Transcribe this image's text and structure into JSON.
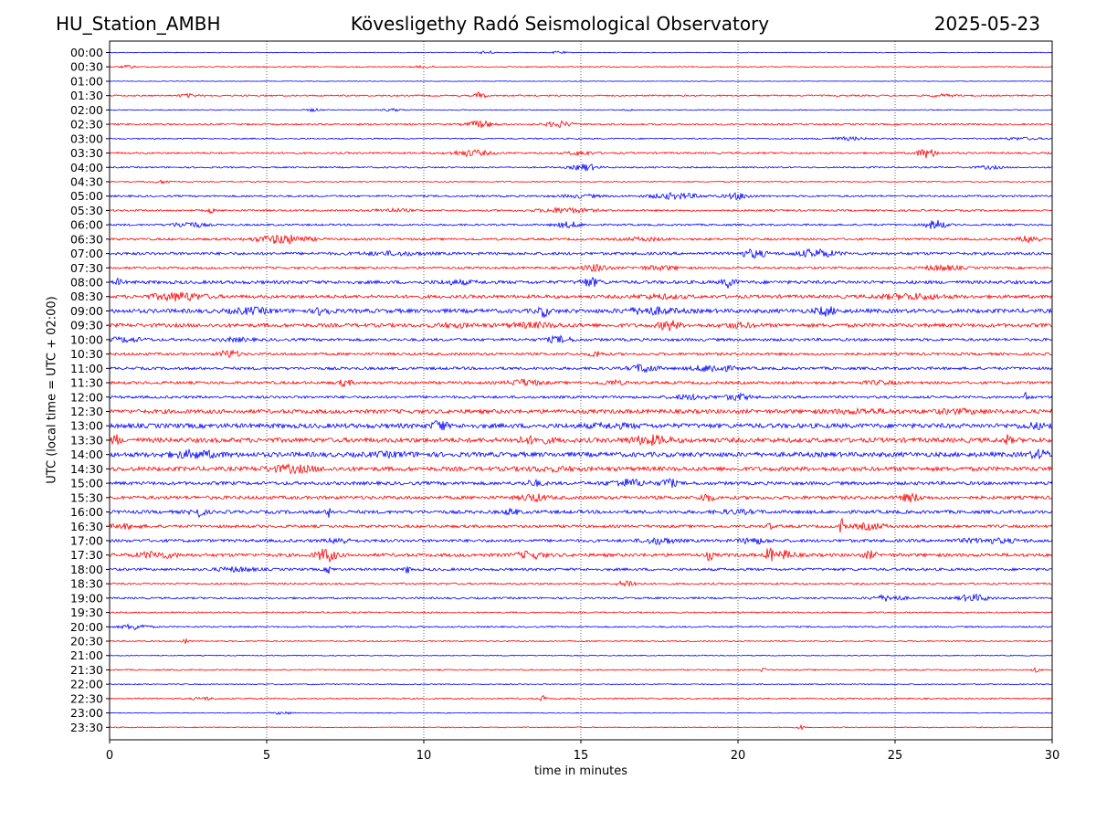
{
  "header": {
    "station": "HU_Station_AMBH",
    "observatory": "Kövesligethy Radó Seismological Observatory",
    "date": "2025-05-23"
  },
  "chart_data": {
    "type": "line",
    "title": "Kövesligethy Radó Seismological Observatory",
    "xlabel": "time in minutes",
    "ylabel": "UTC (local time = UTC + 02:00)",
    "xlim": [
      0,
      30
    ],
    "x_ticks": [
      "0",
      "5",
      "10",
      "15",
      "20",
      "25",
      "30"
    ],
    "x_grid": "dotted vertical lines at 5, 10, 15, 20, 25",
    "trace_colors": [
      "#0000ff",
      "#ff0000"
    ],
    "color_pattern": "alternating, blue on the hour, red on the half hour",
    "rows": [
      "00:00",
      "00:30",
      "01:00",
      "01:30",
      "02:00",
      "02:30",
      "03:00",
      "03:30",
      "04:00",
      "04:30",
      "05:00",
      "05:30",
      "06:00",
      "06:30",
      "07:00",
      "07:30",
      "08:00",
      "08:30",
      "09:00",
      "09:30",
      "10:00",
      "10:30",
      "11:00",
      "11:30",
      "12:00",
      "12:30",
      "13:00",
      "13:30",
      "14:00",
      "14:30",
      "15:00",
      "15:30",
      "16:00",
      "16:30",
      "17:00",
      "17:30",
      "18:00",
      "18:30",
      "19:00",
      "19:30",
      "20:00",
      "20:30",
      "21:00",
      "21:30",
      "22:00",
      "22:30",
      "23:00",
      "23:30"
    ],
    "series": [
      {
        "base": 0.4,
        "bursts": [
          [
            12,
            0.2,
            2
          ],
          [
            14.3,
            0.2,
            1.5
          ]
        ]
      },
      {
        "base": 0.6,
        "bursts": [
          [
            0.6,
            0.2,
            1.5
          ],
          [
            10,
            0.3,
            1
          ]
        ]
      },
      {
        "base": 0.3,
        "bursts": []
      },
      {
        "base": 0.8,
        "bursts": [
          [
            11.8,
            0.15,
            4
          ],
          [
            2.5,
            0.3,
            1.5
          ],
          [
            26.5,
            0.4,
            1.2
          ]
        ]
      },
      {
        "base": 0.5,
        "bursts": [
          [
            6.5,
            0.2,
            1.5
          ],
          [
            9,
            0.3,
            1.2
          ],
          [
            16.5,
            0.1,
            2
          ]
        ]
      },
      {
        "base": 0.9,
        "bursts": [
          [
            11.8,
            0.4,
            3.5
          ],
          [
            14.3,
            0.4,
            3
          ]
        ]
      },
      {
        "base": 0.7,
        "bursts": [
          [
            23.5,
            0.6,
            1.5
          ],
          [
            29,
            0.6,
            1.2
          ]
        ]
      },
      {
        "base": 1.0,
        "bursts": [
          [
            11.5,
            0.6,
            3
          ],
          [
            15,
            0.4,
            2
          ],
          [
            26,
            0.3,
            5
          ]
        ]
      },
      {
        "base": 0.8,
        "bursts": [
          [
            15,
            0.4,
            1.5
          ],
          [
            28,
            0.4,
            1.5
          ],
          [
            15.2,
            0.3,
            2.5
          ]
        ]
      },
      {
        "base": 0.6,
        "bursts": [
          [
            1.7,
            0.3,
            1.5
          ]
        ]
      },
      {
        "base": 1.0,
        "bursts": [
          [
            18,
            0.8,
            3
          ],
          [
            20,
            0.4,
            3
          ],
          [
            15,
            0.6,
            1.5
          ]
        ]
      },
      {
        "base": 1.0,
        "bursts": [
          [
            3.2,
            0.1,
            3
          ],
          [
            14.5,
            0.8,
            2.5
          ],
          [
            9,
            0.6,
            1.5
          ]
        ]
      },
      {
        "base": 1.0,
        "bursts": [
          [
            2.5,
            0.5,
            3
          ],
          [
            14.6,
            0.4,
            3
          ],
          [
            26.3,
            0.3,
            5
          ]
        ]
      },
      {
        "base": 1.2,
        "bursts": [
          [
            5.5,
            0.8,
            4.5
          ],
          [
            29.3,
            0.3,
            4
          ],
          [
            17,
            0.6,
            1.5
          ]
        ]
      },
      {
        "base": 1.5,
        "bursts": [
          [
            20.5,
            0.4,
            4
          ],
          [
            22.5,
            0.6,
            4
          ],
          [
            9,
            1.0,
            1.5
          ]
        ]
      },
      {
        "base": 1.2,
        "bursts": [
          [
            15.5,
            0.4,
            3.5
          ],
          [
            26.5,
            0.6,
            2.5
          ],
          [
            17.5,
            0.6,
            2
          ]
        ]
      },
      {
        "base": 1.8,
        "bursts": [
          [
            15.3,
            0.3,
            4
          ],
          [
            19.7,
            0.2,
            5
          ],
          [
            0.3,
            0.1,
            3
          ],
          [
            11,
            0.6,
            1.5
          ]
        ]
      },
      {
        "base": 1.8,
        "bursts": [
          [
            2.2,
            0.8,
            4
          ],
          [
            25.5,
            1.0,
            2.5
          ],
          [
            17.5,
            0.8,
            1.5
          ]
        ]
      },
      {
        "base": 2.2,
        "bursts": [
          [
            6.8,
            0.2,
            5
          ],
          [
            13.8,
            0.2,
            5
          ],
          [
            17.2,
            0.8,
            3
          ],
          [
            22.8,
            0.3,
            4
          ],
          [
            4.5,
            0.6,
            2.5
          ]
        ]
      },
      {
        "base": 2.0,
        "bursts": [
          [
            17.8,
            0.3,
            5
          ],
          [
            13.5,
            0.8,
            2
          ],
          [
            11,
            0.6,
            1.5
          ],
          [
            20,
            0.5,
            2
          ]
        ]
      },
      {
        "base": 1.5,
        "bursts": [
          [
            14.3,
            0.4,
            3
          ],
          [
            0.5,
            0.6,
            2
          ],
          [
            4,
            0.5,
            1.5
          ]
        ]
      },
      {
        "base": 1.4,
        "bursts": [
          [
            3.8,
            0.3,
            4
          ],
          [
            15.5,
            0.2,
            3
          ]
        ]
      },
      {
        "base": 1.5,
        "bursts": [
          [
            17,
            0.4,
            4
          ],
          [
            19.2,
            0.6,
            3.5
          ]
        ]
      },
      {
        "base": 1.5,
        "bursts": [
          [
            13.2,
            0.5,
            3
          ],
          [
            7.5,
            0.2,
            3.5
          ],
          [
            16,
            0.4,
            2
          ],
          [
            24.5,
            0.5,
            1.5
          ]
        ]
      },
      {
        "base": 1.4,
        "bursts": [
          [
            20,
            0.4,
            3
          ],
          [
            29.2,
            0.1,
            5
          ],
          [
            18.5,
            0.6,
            2
          ]
        ]
      },
      {
        "base": 2.2,
        "bursts": [
          [
            24,
            1.0,
            1.5
          ],
          [
            27,
            0.8,
            1.5
          ]
        ]
      },
      {
        "base": 2.5,
        "bursts": [
          [
            10.5,
            0.2,
            6
          ],
          [
            16,
            0.8,
            1.5
          ],
          [
            29.5,
            0.5,
            2
          ]
        ]
      },
      {
        "base": 2.5,
        "bursts": [
          [
            0.2,
            0.1,
            6
          ],
          [
            13.5,
            0.6,
            2.5
          ],
          [
            17.2,
            0.6,
            4
          ],
          [
            28.6,
            0.1,
            5
          ]
        ]
      },
      {
        "base": 2.5,
        "bursts": [
          [
            2.7,
            0.8,
            3
          ],
          [
            29.6,
            0.3,
            3.5
          ],
          [
            9,
            0.8,
            1.4
          ]
        ]
      },
      {
        "base": 2.3,
        "bursts": [
          [
            5.8,
            0.8,
            3
          ],
          [
            14,
            0.8,
            1.4
          ]
        ]
      },
      {
        "base": 1.8,
        "bursts": [
          [
            16.5,
            0.6,
            3.5
          ],
          [
            17.8,
            0.2,
            5
          ],
          [
            13.5,
            0.3,
            2.5
          ]
        ]
      },
      {
        "base": 1.8,
        "bursts": [
          [
            13.5,
            0.4,
            3.5
          ],
          [
            19,
            0.2,
            4
          ],
          [
            25.5,
            0.3,
            4
          ]
        ]
      },
      {
        "base": 1.8,
        "bursts": [
          [
            2.8,
            0.2,
            5
          ],
          [
            7,
            0.1,
            5
          ],
          [
            12.8,
            0.2,
            3
          ],
          [
            20,
            0.6,
            1.5
          ]
        ]
      },
      {
        "base": 1.5,
        "bursts": [
          [
            23.3,
            0.1,
            8
          ],
          [
            24.2,
            0.5,
            3
          ],
          [
            0.5,
            0.5,
            2
          ],
          [
            21,
            0.1,
            3
          ]
        ]
      },
      {
        "base": 1.6,
        "bursts": [
          [
            17.5,
            0.5,
            3
          ],
          [
            20.5,
            0.4,
            3
          ],
          [
            28,
            1.0,
            2
          ],
          [
            7.3,
            0.3,
            3
          ]
        ]
      },
      {
        "base": 1.8,
        "bursts": [
          [
            6.9,
            0.3,
            7
          ],
          [
            1.5,
            0.6,
            3
          ],
          [
            13.4,
            0.4,
            3.5
          ],
          [
            21.0,
            0.1,
            10
          ],
          [
            21.5,
            0.3,
            4
          ],
          [
            19.1,
            0.1,
            5
          ],
          [
            24.2,
            0.2,
            3.5
          ]
        ]
      },
      {
        "base": 1.4,
        "bursts": [
          [
            4,
            0.6,
            2
          ],
          [
            7,
            0.1,
            4
          ],
          [
            9.5,
            0.1,
            4
          ]
        ]
      },
      {
        "base": 1.0,
        "bursts": [
          [
            16.5,
            0.3,
            3.5
          ]
        ]
      },
      {
        "base": 1.0,
        "bursts": [
          [
            24.8,
            0.5,
            3
          ],
          [
            27.5,
            0.5,
            3.5
          ]
        ]
      },
      {
        "base": 0.8,
        "bursts": []
      },
      {
        "base": 0.8,
        "bursts": [
          [
            0.8,
            0.4,
            3
          ]
        ]
      },
      {
        "base": 0.7,
        "bursts": [
          [
            2.4,
            0.1,
            3
          ]
        ]
      },
      {
        "base": 0.5,
        "bursts": []
      },
      {
        "base": 0.7,
        "bursts": [
          [
            29.5,
            0.1,
            3
          ],
          [
            20.8,
            0.1,
            2
          ]
        ]
      },
      {
        "base": 0.6,
        "bursts": []
      },
      {
        "base": 0.8,
        "bursts": [
          [
            13.8,
            0.1,
            3
          ],
          [
            3,
            0.3,
            1.5
          ]
        ]
      },
      {
        "base": 0.4,
        "bursts": [
          [
            5.5,
            0.3,
            1.5
          ]
        ]
      },
      {
        "base": 0.5,
        "bursts": [
          [
            22,
            0.1,
            2
          ]
        ]
      }
    ]
  }
}
